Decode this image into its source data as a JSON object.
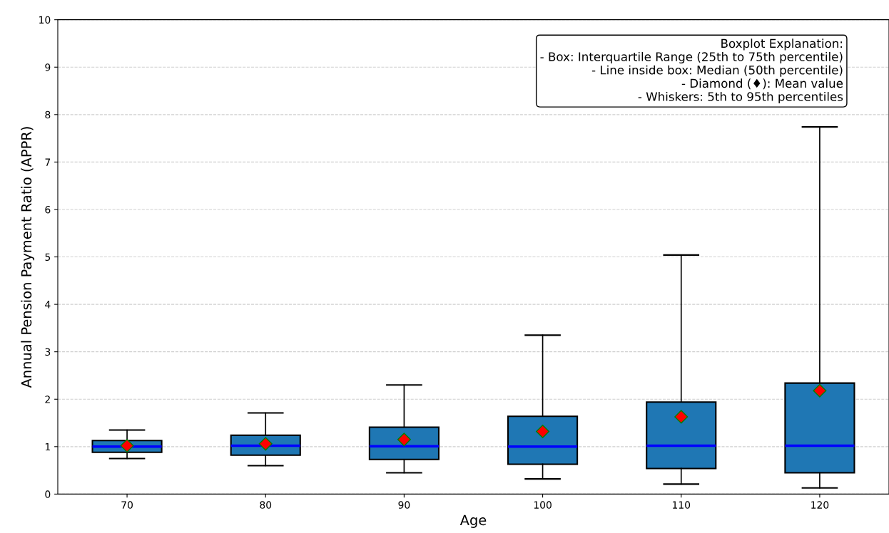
{
  "chart_data": {
    "type": "box",
    "xlabel": "Age",
    "ylabel": "Annual Pension Payment Ratio (APPR)",
    "categories": [
      "70",
      "80",
      "90",
      "100",
      "110",
      "120"
    ],
    "boxes": [
      {
        "low": 0.75,
        "q1": 0.88,
        "median": 1.0,
        "q3": 1.13,
        "high": 1.35,
        "mean": 1.02
      },
      {
        "low": 0.6,
        "q1": 0.82,
        "median": 1.02,
        "q3": 1.24,
        "high": 1.71,
        "mean": 1.06
      },
      {
        "low": 0.45,
        "q1": 0.73,
        "median": 1.01,
        "q3": 1.41,
        "high": 2.3,
        "mean": 1.15
      },
      {
        "low": 0.32,
        "q1": 0.63,
        "median": 1.0,
        "q3": 1.64,
        "high": 3.35,
        "mean": 1.32
      },
      {
        "low": 0.21,
        "q1": 0.54,
        "median": 1.02,
        "q3": 1.94,
        "high": 5.04,
        "mean": 1.63
      },
      {
        "low": 0.13,
        "q1": 0.45,
        "median": 1.02,
        "q3": 2.34,
        "high": 7.74,
        "mean": 2.18
      }
    ],
    "color": "#1f77b4",
    "ylim": [
      0,
      10
    ],
    "yticks": [
      0,
      1,
      2,
      3,
      4,
      5,
      6,
      7,
      8,
      9,
      10
    ],
    "grid": "y",
    "annotations": [
      "Boxplot Explanation:\n- Box: Interquartile Range (25th to 75th percentile)\n- Line inside box: Median (50th percentile)\n- Diamond (♦): Mean value\n- Whiskers: 5th to 95th percentiles"
    ]
  }
}
